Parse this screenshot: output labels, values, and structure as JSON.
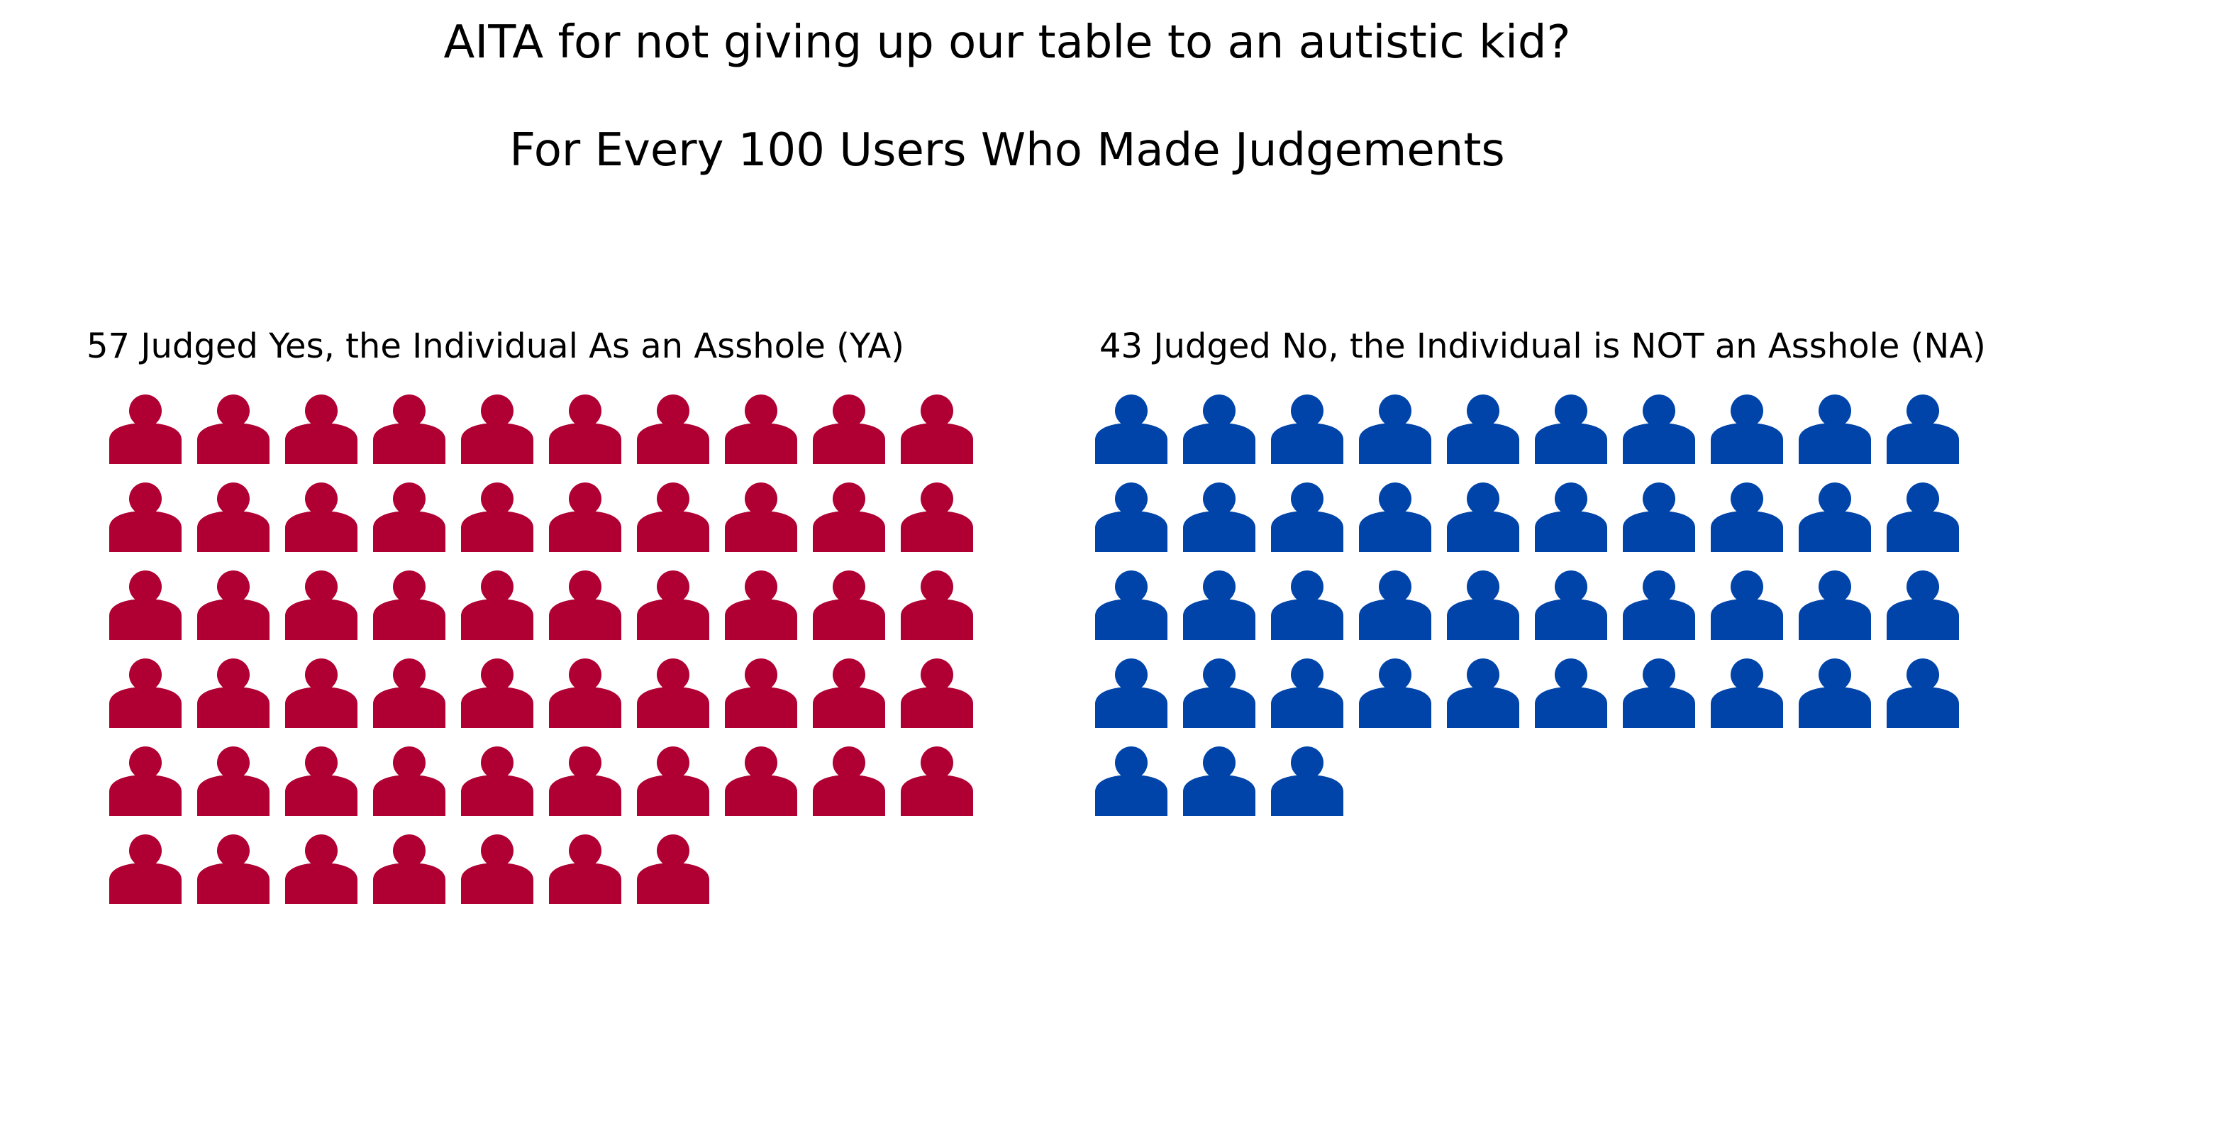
{
  "chart_data": {
    "type": "pictograph",
    "title": "AITA for not giving up our table to an autistic kid?",
    "subtitle": "For Every 100 Users Who Made Judgements",
    "icon": "person-icon",
    "icons_per_row": 10,
    "series": [
      {
        "id": "ya",
        "name": "57 Judged Yes, the Individual As an Asshole (YA)",
        "value": 57,
        "color": "#B00033"
      },
      {
        "id": "na",
        "name": "43 Judged No, the Individual is NOT an Asshole (NA)",
        "value": 43,
        "color": "#0044AA"
      }
    ]
  }
}
